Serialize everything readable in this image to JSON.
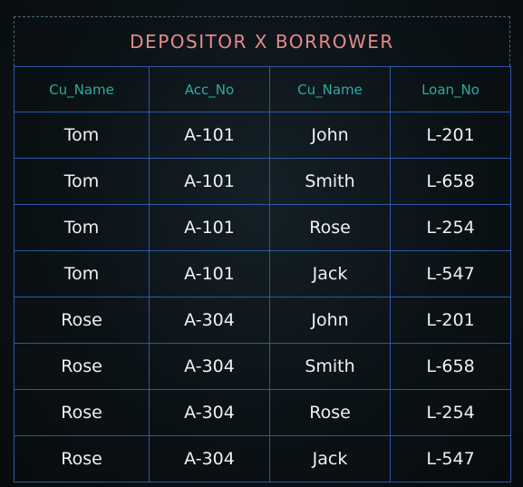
{
  "title": "DEPOSITOR X BORROWER",
  "columns": [
    "Cu_Name",
    "Acc_No",
    "Cu_Name",
    "Loan_No"
  ],
  "rows": [
    [
      "Tom",
      "A-101",
      "John",
      "L-201"
    ],
    [
      "Tom",
      "A-101",
      "Smith",
      "L-658"
    ],
    [
      "Tom",
      "A-101",
      "Rose",
      "L-254"
    ],
    [
      "Tom",
      "A-101",
      "Jack",
      "L-547"
    ],
    [
      "Rose",
      "A-304",
      "John",
      "L-201"
    ],
    [
      "Rose",
      "A-304",
      "Smith",
      "L-658"
    ],
    [
      "Rose",
      "A-304",
      "Rose",
      "L-254"
    ],
    [
      "Rose",
      "A-304",
      "Jack",
      "L-547"
    ]
  ],
  "colors": {
    "title": "#e58a8a",
    "header_text": "#2fa9a2",
    "cell_text": "#f0f0f0",
    "grid_line": "#2f57a7",
    "background": "#0b1216"
  }
}
